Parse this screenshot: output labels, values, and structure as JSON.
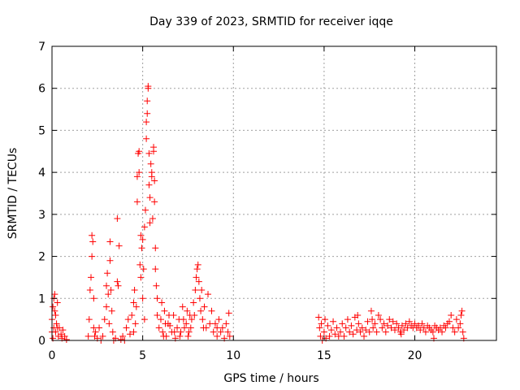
{
  "chart_data": {
    "type": "scatter",
    "title": "Day 339 of 2023, SRMTID for receiver iqqe",
    "xlabel": "GPS time / hours",
    "ylabel": "SRMTID / TECUs",
    "xlim": [
      0,
      24.5
    ],
    "ylim": [
      0,
      7
    ],
    "xticks": [
      0,
      5,
      10,
      15,
      20
    ],
    "yticks": [
      0,
      1,
      2,
      3,
      4,
      5,
      6,
      7
    ],
    "grid": true,
    "marker": "+",
    "marker_color": "#ff0000",
    "series": [
      {
        "name": "SRMTID",
        "points": [
          [
            0.0,
            0.5
          ],
          [
            0.05,
            0.8
          ],
          [
            0.1,
            1.0
          ],
          [
            0.1,
            0.3
          ],
          [
            0.15,
            1.1
          ],
          [
            0.2,
            0.6
          ],
          [
            0.2,
            0.2
          ],
          [
            0.25,
            0.4
          ],
          [
            0.3,
            0.9
          ],
          [
            0.35,
            0.1
          ],
          [
            0.4,
            0.3
          ],
          [
            0.5,
            0.15
          ],
          [
            0.55,
            0.05
          ],
          [
            0.6,
            0.25
          ],
          [
            0.7,
            0.1
          ],
          [
            0.8,
            0.02
          ],
          [
            0.0,
            0.2
          ],
          [
            0.05,
            0.05
          ],
          [
            0.15,
            0.7
          ],
          [
            0.3,
            0.3
          ],
          [
            2.0,
            0.1
          ],
          [
            2.05,
            0.5
          ],
          [
            2.1,
            1.2
          ],
          [
            2.15,
            1.5
          ],
          [
            2.2,
            2.0
          ],
          [
            2.2,
            2.5
          ],
          [
            2.25,
            2.35
          ],
          [
            2.3,
            1.0
          ],
          [
            2.3,
            0.3
          ],
          [
            2.35,
            0.1
          ],
          [
            2.4,
            0.2
          ],
          [
            2.5,
            0.05
          ],
          [
            2.6,
            0.3
          ],
          [
            2.7,
            0.0
          ],
          [
            2.8,
            0.1
          ],
          [
            2.9,
            0.5
          ],
          [
            3.0,
            0.8
          ],
          [
            3.0,
            1.3
          ],
          [
            3.05,
            1.6
          ],
          [
            3.1,
            1.1
          ],
          [
            3.15,
            0.4
          ],
          [
            3.2,
            1.9
          ],
          [
            3.2,
            2.35
          ],
          [
            3.25,
            1.2
          ],
          [
            3.3,
            0.7
          ],
          [
            3.35,
            0.2
          ],
          [
            3.4,
            0.0
          ],
          [
            3.5,
            0.05
          ],
          [
            3.6,
            2.9
          ],
          [
            3.6,
            1.4
          ],
          [
            3.65,
            1.3
          ],
          [
            3.7,
            2.25
          ],
          [
            3.8,
            0.02
          ],
          [
            3.9,
            0.1
          ],
          [
            4.0,
            0.0
          ],
          [
            4.1,
            0.3
          ],
          [
            4.2,
            0.5
          ],
          [
            4.3,
            0.15
          ],
          [
            4.4,
            0.6
          ],
          [
            4.5,
            0.2
          ],
          [
            4.5,
            0.9
          ],
          [
            4.55,
            1.2
          ],
          [
            4.6,
            0.4
          ],
          [
            4.65,
            0.8
          ],
          [
            4.7,
            3.9
          ],
          [
            4.7,
            3.3
          ],
          [
            4.75,
            4.45
          ],
          [
            4.8,
            4.5
          ],
          [
            4.8,
            4.0
          ],
          [
            4.85,
            1.8
          ],
          [
            4.9,
            2.5
          ],
          [
            4.9,
            1.5
          ],
          [
            4.95,
            2.2
          ],
          [
            5.0,
            2.4
          ],
          [
            5.0,
            1.0
          ],
          [
            5.05,
            1.7
          ],
          [
            5.1,
            0.5
          ],
          [
            5.1,
            2.7
          ],
          [
            5.15,
            3.1
          ],
          [
            5.2,
            4.8
          ],
          [
            5.2,
            5.2
          ],
          [
            5.25,
            5.4
          ],
          [
            5.25,
            5.7
          ],
          [
            5.3,
            6.0
          ],
          [
            5.3,
            6.05
          ],
          [
            5.35,
            4.45
          ],
          [
            5.35,
            3.7
          ],
          [
            5.4,
            3.4
          ],
          [
            5.4,
            2.8
          ],
          [
            5.45,
            4.2
          ],
          [
            5.5,
            3.9
          ],
          [
            5.5,
            4.0
          ],
          [
            5.55,
            2.9
          ],
          [
            5.6,
            4.6
          ],
          [
            5.6,
            4.5
          ],
          [
            5.65,
            3.8
          ],
          [
            5.65,
            3.3
          ],
          [
            5.7,
            2.2
          ],
          [
            5.7,
            1.7
          ],
          [
            5.75,
            1.3
          ],
          [
            5.8,
            1.0
          ],
          [
            5.8,
            0.6
          ],
          [
            5.9,
            0.3
          ],
          [
            6.0,
            0.5
          ],
          [
            6.1,
            0.2
          ],
          [
            6.2,
            0.7
          ],
          [
            6.3,
            0.1
          ],
          [
            6.4,
            0.4
          ],
          [
            6.5,
            0.35
          ],
          [
            6.6,
            0.2
          ],
          [
            6.7,
            0.6
          ],
          [
            6.8,
            0.05
          ],
          [
            6.9,
            0.3
          ],
          [
            7.0,
            0.5
          ],
          [
            7.1,
            0.2
          ],
          [
            7.2,
            0.8
          ],
          [
            7.3,
            0.3
          ],
          [
            7.4,
            0.4
          ],
          [
            7.5,
            0.1
          ],
          [
            7.6,
            0.6
          ],
          [
            7.7,
            0.5
          ],
          [
            7.8,
            0.9
          ],
          [
            7.9,
            1.2
          ],
          [
            7.95,
            1.5
          ],
          [
            8.0,
            1.7
          ],
          [
            8.05,
            1.8
          ],
          [
            8.1,
            1.4
          ],
          [
            8.15,
            1.0
          ],
          [
            8.2,
            0.7
          ],
          [
            8.25,
            1.2
          ],
          [
            8.3,
            0.5
          ],
          [
            8.4,
            0.8
          ],
          [
            8.5,
            0.3
          ],
          [
            8.6,
            1.1
          ],
          [
            8.7,
            0.4
          ],
          [
            8.8,
            0.7
          ],
          [
            8.9,
            0.2
          ],
          [
            9.0,
            0.4
          ],
          [
            9.1,
            0.1
          ],
          [
            9.2,
            0.5
          ],
          [
            9.3,
            0.2
          ],
          [
            9.4,
            0.3
          ],
          [
            9.5,
            0.05
          ],
          [
            9.6,
            0.4
          ],
          [
            9.7,
            0.2
          ],
          [
            9.75,
            0.65
          ],
          [
            9.8,
            0.1
          ],
          [
            9.1,
            0.3
          ],
          [
            8.35,
            0.3
          ],
          [
            7.55,
            0.2
          ],
          [
            6.05,
            0.9
          ],
          [
            6.15,
            0.1
          ],
          [
            6.25,
            0.4
          ],
          [
            6.45,
            0.6
          ],
          [
            6.75,
            0.2
          ],
          [
            7.05,
            0.1
          ],
          [
            7.25,
            0.5
          ],
          [
            7.45,
            0.7
          ],
          [
            7.65,
            0.3
          ],
          [
            7.85,
            0.6
          ],
          [
            14.7,
            0.55
          ],
          [
            14.75,
            0.3
          ],
          [
            14.8,
            0.1
          ],
          [
            14.85,
            0.4
          ],
          [
            14.9,
            0.0
          ],
          [
            15.0,
            0.2
          ],
          [
            15.1,
            0.05
          ],
          [
            15.2,
            0.35
          ],
          [
            15.3,
            0.1
          ],
          [
            15.4,
            0.25
          ],
          [
            15.5,
            0.45
          ],
          [
            15.6,
            0.15
          ],
          [
            15.7,
            0.3
          ],
          [
            15.8,
            0.1
          ],
          [
            15.9,
            0.2
          ],
          [
            16.0,
            0.4
          ],
          [
            16.1,
            0.1
          ],
          [
            16.2,
            0.3
          ],
          [
            16.3,
            0.5
          ],
          [
            16.4,
            0.2
          ],
          [
            16.5,
            0.35
          ],
          [
            16.6,
            0.15
          ],
          [
            16.7,
            0.55
          ],
          [
            16.8,
            0.25
          ],
          [
            16.9,
            0.4
          ],
          [
            17.0,
            0.2
          ],
          [
            17.1,
            0.3
          ],
          [
            17.2,
            0.1
          ],
          [
            17.3,
            0.25
          ],
          [
            17.4,
            0.45
          ],
          [
            17.5,
            0.2
          ],
          [
            17.6,
            0.7
          ],
          [
            17.65,
            0.5
          ],
          [
            17.7,
            0.3
          ],
          [
            17.8,
            0.4
          ],
          [
            17.9,
            0.2
          ],
          [
            18.0,
            0.6
          ],
          [
            18.1,
            0.5
          ],
          [
            18.2,
            0.3
          ],
          [
            18.3,
            0.4
          ],
          [
            18.4,
            0.2
          ],
          [
            18.5,
            0.35
          ],
          [
            18.6,
            0.5
          ],
          [
            18.7,
            0.3
          ],
          [
            18.8,
            0.45
          ],
          [
            18.9,
            0.25
          ],
          [
            19.0,
            0.4
          ],
          [
            19.1,
            0.3
          ],
          [
            19.2,
            0.2
          ],
          [
            19.3,
            0.35
          ],
          [
            19.4,
            0.25
          ],
          [
            19.5,
            0.4
          ],
          [
            19.6,
            0.3
          ],
          [
            19.7,
            0.45
          ],
          [
            19.8,
            0.35
          ],
          [
            19.9,
            0.3
          ],
          [
            20.0,
            0.4
          ],
          [
            20.1,
            0.3
          ],
          [
            20.2,
            0.35
          ],
          [
            20.3,
            0.25
          ],
          [
            20.4,
            0.4
          ],
          [
            20.5,
            0.3
          ],
          [
            20.6,
            0.2
          ],
          [
            20.7,
            0.35
          ],
          [
            20.8,
            0.3
          ],
          [
            20.9,
            0.25
          ],
          [
            21.0,
            0.2
          ],
          [
            21.1,
            0.35
          ],
          [
            21.2,
            0.3
          ],
          [
            21.3,
            0.25
          ],
          [
            21.4,
            0.3
          ],
          [
            21.5,
            0.2
          ],
          [
            21.6,
            0.35
          ],
          [
            21.7,
            0.3
          ],
          [
            21.8,
            0.4
          ],
          [
            21.9,
            0.45
          ],
          [
            22.0,
            0.6
          ],
          [
            22.1,
            0.3
          ],
          [
            22.2,
            0.2
          ],
          [
            22.3,
            0.5
          ],
          [
            22.4,
            0.3
          ],
          [
            22.5,
            0.4
          ],
          [
            22.55,
            0.6
          ],
          [
            22.6,
            0.7
          ],
          [
            22.65,
            0.2
          ],
          [
            22.7,
            0.05
          ],
          [
            15.05,
            0.5
          ],
          [
            16.85,
            0.6
          ],
          [
            19.25,
            0.15
          ],
          [
            21.05,
            0.05
          ]
        ]
      }
    ]
  }
}
